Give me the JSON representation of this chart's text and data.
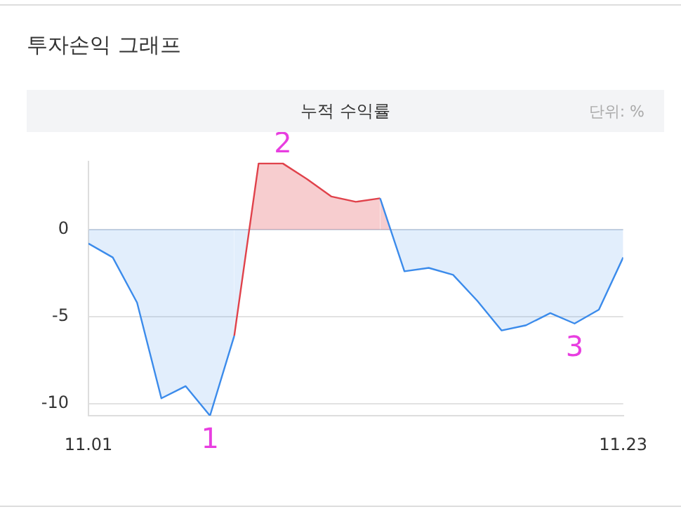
{
  "chart_data": {
    "type": "area",
    "title": "투자손익 그래프",
    "subtitle": "누적 수익률",
    "x": [
      "--11-01",
      "--11-02",
      "--11-03",
      "--11-04",
      "--11-05",
      "--11-06",
      "--11-07",
      "--11-08",
      "--11-09",
      "--11-10",
      "--11-11",
      "--11-12",
      "--11-13",
      "--11-14",
      "--11-15",
      "--11-16",
      "--11-17",
      "--11-18",
      "--11-19",
      "--11-20",
      "--11-21",
      "--11-22",
      "--11-23"
    ],
    "series": [
      {
        "color": "#3b8beb",
        "colors": [
          "#3b8beb",
          "#3b8beb",
          "#3b8beb",
          "#3b8beb",
          "#3b8beb",
          "#3b8beb",
          "#3b8beb",
          "#e0424b",
          "#e0424b",
          "#e0424b",
          "#e0424b",
          "#e0424b",
          "#e0424b",
          "#3b8beb",
          "#3b8beb",
          "#3b8beb",
          "#3b8beb",
          "#3b8beb",
          "#3b8beb",
          "#3b8beb",
          "#3b8beb",
          "#3b8beb",
          "#3b8beb"
        ],
        "values": [
          -0.8,
          -1.6,
          -4.2,
          -9.7,
          -9.0,
          -10.7,
          -6.1,
          3.8,
          3.8,
          2.9,
          1.9,
          1.6,
          1.8,
          -2.4,
          -2.2,
          -2.6,
          -4.1,
          -5.8,
          -5.5,
          -4.8,
          -5.4,
          -4.6,
          -1.6
        ]
      }
    ],
    "xlim": [
      "--11-01",
      "--11-23"
    ],
    "xticks": [
      {
        "value": "--11-01",
        "label": "11.01"
      },
      {
        "value": "--11-23",
        "label": "11.23"
      }
    ],
    "ylim": [
      -10.7,
      3.9
    ],
    "yticks": [
      -10,
      -5,
      0
    ],
    "grid": "y",
    "marker": "none",
    "annotations": [
      "단위: %",
      {
        "text": "1",
        "x": "--11-06",
        "y": -10.7
      },
      {
        "text": "2",
        "x": "--11-09",
        "y": 3.8
      },
      {
        "text": "3",
        "x": "--11-21",
        "y": -5.4
      }
    ]
  }
}
